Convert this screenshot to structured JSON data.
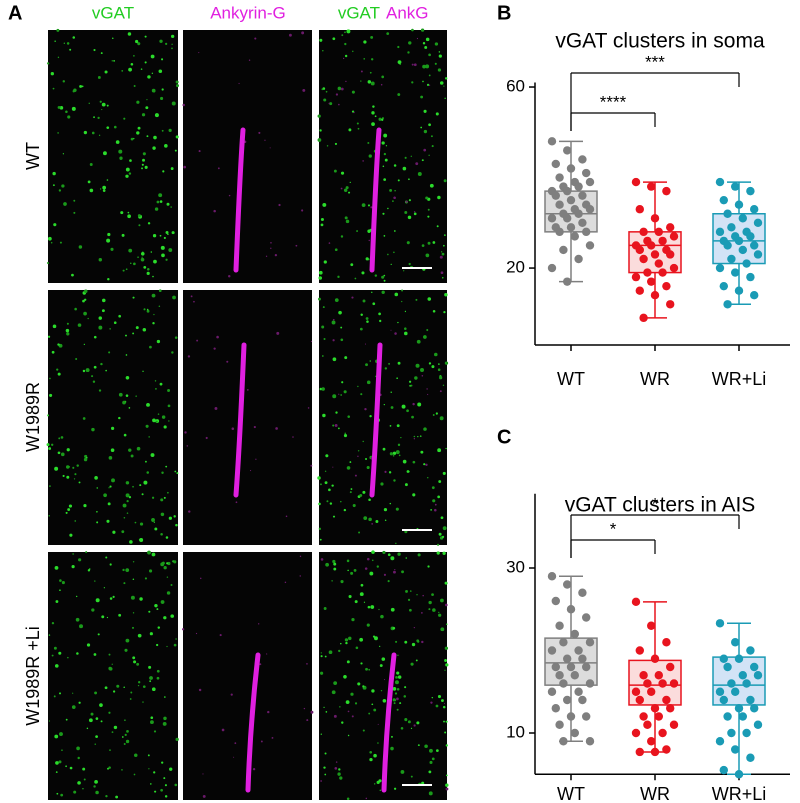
{
  "panel_labels": [
    "A",
    "B",
    "C"
  ],
  "columns": [
    "vGAT",
    "Ankyrin-G",
    "vGAT",
    "AnkG"
  ],
  "rows": [
    "WT",
    "W1989R",
    "W1989R +Li"
  ],
  "chart_data": [
    {
      "type": "box",
      "title": "vGAT clusters in soma",
      "categories": [
        "WT",
        "WR",
        "WR+Li"
      ],
      "ylim": [
        3,
        61
      ],
      "yticks": [
        20,
        60
      ],
      "annotations": [
        "****",
        "***"
      ],
      "boxes": [
        {
          "color": "#7f7f7f",
          "fill": "#dcdcdc",
          "min": 17,
          "q1": 28,
          "median": 32,
          "q3": 37,
          "max": 48,
          "points": [
            48,
            46,
            44,
            43,
            42,
            41,
            40,
            39,
            39,
            38,
            38,
            37,
            37,
            36,
            36,
            35,
            34,
            34,
            33,
            33,
            32,
            32,
            31,
            31,
            30,
            29,
            29,
            28,
            28,
            27,
            25,
            24,
            22,
            20,
            17
          ]
        },
        {
          "color": "#e8141e",
          "fill": "#fbdcdc",
          "min": 9,
          "q1": 19,
          "median": 25,
          "q3": 28,
          "max": 39,
          "points": [
            39,
            38,
            37,
            33,
            31,
            29,
            28,
            28,
            27,
            26,
            26,
            25,
            25,
            24,
            24,
            23,
            23,
            22,
            21,
            20,
            19,
            19,
            18,
            17,
            16,
            15,
            14,
            12,
            9
          ]
        },
        {
          "color": "#1a9bb5",
          "fill": "#d2e3f6",
          "min": 12,
          "q1": 21,
          "median": 26,
          "q3": 32,
          "max": 39,
          "points": [
            39,
            38,
            37,
            35,
            34,
            33,
            32,
            31,
            30,
            29,
            28,
            28,
            27,
            27,
            26,
            26,
            25,
            25,
            24,
            23,
            22,
            21,
            20,
            19,
            18,
            16,
            15,
            14,
            12
          ]
        }
      ]
    },
    {
      "type": "box",
      "title": "vGAT clusters in AIS",
      "categories": [
        "WT",
        "WR",
        "WR+Li"
      ],
      "ylim": [
        5,
        39
      ],
      "yticks": [
        10,
        30
      ],
      "annotations": [
        "*",
        "*"
      ],
      "boxes": [
        {
          "color": "#7f7f7f",
          "fill": "#dcdcdc",
          "min": 9,
          "q1": 15.8,
          "median": 18.5,
          "q3": 21.5,
          "max": 29,
          "points": [
            29,
            28,
            27,
            26,
            25,
            24,
            23,
            22,
            21,
            21,
            20,
            20,
            19,
            19,
            18,
            18,
            18,
            17,
            17,
            16,
            16,
            15,
            15,
            14,
            14,
            13,
            12,
            12,
            11,
            10,
            9,
            9
          ]
        },
        {
          "color": "#e8141e",
          "fill": "#fbdcdc",
          "min": 7.7,
          "q1": 13.4,
          "median": 15.8,
          "q3": 18.8,
          "max": 25.9,
          "points": [
            25.9,
            23,
            21,
            20,
            19,
            18,
            17,
            17,
            16,
            16,
            16,
            15,
            15,
            14,
            14,
            13,
            13,
            12,
            12,
            11,
            11,
            10,
            10,
            9,
            8,
            7.7,
            7.7
          ]
        },
        {
          "color": "#1a9bb5",
          "fill": "#d2e3f6",
          "min": 5,
          "q1": 13.4,
          "median": 15.8,
          "q3": 19.2,
          "max": 23.3,
          "points": [
            23.3,
            21,
            20,
            19,
            19,
            18,
            18,
            17,
            17,
            16,
            16,
            15,
            15,
            14,
            14,
            13,
            13,
            12,
            12,
            11,
            10,
            10,
            9,
            8,
            7,
            5.5,
            5
          ]
        }
      ]
    }
  ]
}
